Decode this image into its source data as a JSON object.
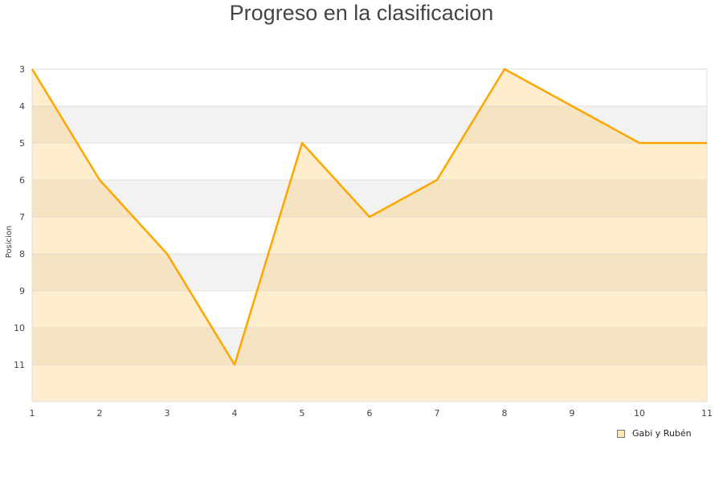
{
  "chart_data": {
    "type": "area",
    "title": "Progreso en la clasificacion",
    "xlabel": "",
    "ylabel": "Posicion",
    "x": [
      1,
      2,
      3,
      4,
      5,
      6,
      7,
      8,
      9,
      10,
      11
    ],
    "xlim": [
      1,
      11
    ],
    "ylim": [
      3,
      12
    ],
    "y_inverted": true,
    "y_ticks": [
      3,
      4,
      5,
      6,
      7,
      8,
      9,
      10,
      11
    ],
    "grid": "horizontal alternating bands",
    "legend_position": "bottom-right",
    "series": [
      {
        "name": "Gabi y Rubén",
        "values": [
          3,
          6,
          8,
          11,
          5,
          7,
          6,
          3,
          4,
          5,
          5
        ],
        "line_color": "#ffa500",
        "fill_color": "#ffebc6"
      }
    ],
    "colors": {
      "band": "#f2f2f2",
      "band_under_fill": "#f6e3c2",
      "axis": "#dddddd"
    }
  }
}
